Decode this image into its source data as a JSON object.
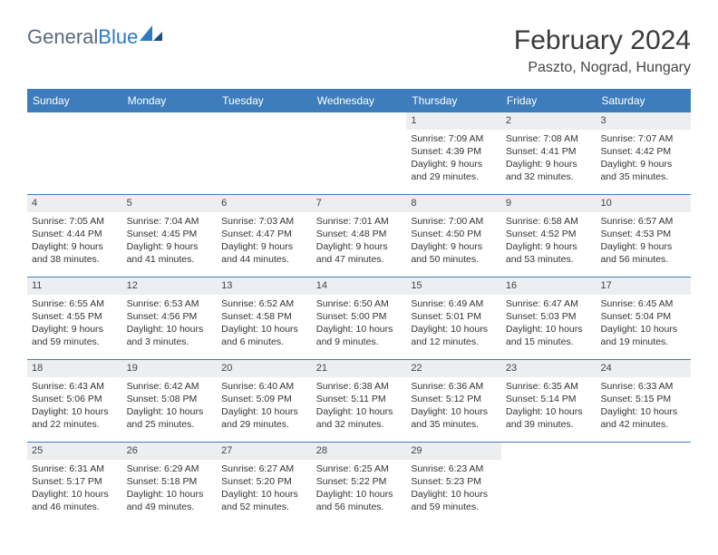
{
  "brand": {
    "part1": "General",
    "part2": "Blue"
  },
  "title": "February 2024",
  "location": "Paszto, Nograd, Hungary",
  "colors": {
    "header_bar": "#3d7dbb",
    "day_num_bg": "#eceef0",
    "brand_gray": "#5c6b7a",
    "brand_blue": "#2e7ac4"
  },
  "dow": [
    "Sunday",
    "Monday",
    "Tuesday",
    "Wednesday",
    "Thursday",
    "Friday",
    "Saturday"
  ],
  "weeks": [
    [
      {
        "n": "",
        "sr": "",
        "ss": "",
        "d1": "",
        "d2": "",
        "empty": true
      },
      {
        "n": "",
        "sr": "",
        "ss": "",
        "d1": "",
        "d2": "",
        "empty": true
      },
      {
        "n": "",
        "sr": "",
        "ss": "",
        "d1": "",
        "d2": "",
        "empty": true
      },
      {
        "n": "",
        "sr": "",
        "ss": "",
        "d1": "",
        "d2": "",
        "empty": true
      },
      {
        "n": "1",
        "sr": "Sunrise: 7:09 AM",
        "ss": "Sunset: 4:39 PM",
        "d1": "Daylight: 9 hours",
        "d2": "and 29 minutes."
      },
      {
        "n": "2",
        "sr": "Sunrise: 7:08 AM",
        "ss": "Sunset: 4:41 PM",
        "d1": "Daylight: 9 hours",
        "d2": "and 32 minutes."
      },
      {
        "n": "3",
        "sr": "Sunrise: 7:07 AM",
        "ss": "Sunset: 4:42 PM",
        "d1": "Daylight: 9 hours",
        "d2": "and 35 minutes."
      }
    ],
    [
      {
        "n": "4",
        "sr": "Sunrise: 7:05 AM",
        "ss": "Sunset: 4:44 PM",
        "d1": "Daylight: 9 hours",
        "d2": "and 38 minutes."
      },
      {
        "n": "5",
        "sr": "Sunrise: 7:04 AM",
        "ss": "Sunset: 4:45 PM",
        "d1": "Daylight: 9 hours",
        "d2": "and 41 minutes."
      },
      {
        "n": "6",
        "sr": "Sunrise: 7:03 AM",
        "ss": "Sunset: 4:47 PM",
        "d1": "Daylight: 9 hours",
        "d2": "and 44 minutes."
      },
      {
        "n": "7",
        "sr": "Sunrise: 7:01 AM",
        "ss": "Sunset: 4:48 PM",
        "d1": "Daylight: 9 hours",
        "d2": "and 47 minutes."
      },
      {
        "n": "8",
        "sr": "Sunrise: 7:00 AM",
        "ss": "Sunset: 4:50 PM",
        "d1": "Daylight: 9 hours",
        "d2": "and 50 minutes."
      },
      {
        "n": "9",
        "sr": "Sunrise: 6:58 AM",
        "ss": "Sunset: 4:52 PM",
        "d1": "Daylight: 9 hours",
        "d2": "and 53 minutes."
      },
      {
        "n": "10",
        "sr": "Sunrise: 6:57 AM",
        "ss": "Sunset: 4:53 PM",
        "d1": "Daylight: 9 hours",
        "d2": "and 56 minutes."
      }
    ],
    [
      {
        "n": "11",
        "sr": "Sunrise: 6:55 AM",
        "ss": "Sunset: 4:55 PM",
        "d1": "Daylight: 9 hours",
        "d2": "and 59 minutes."
      },
      {
        "n": "12",
        "sr": "Sunrise: 6:53 AM",
        "ss": "Sunset: 4:56 PM",
        "d1": "Daylight: 10 hours",
        "d2": "and 3 minutes."
      },
      {
        "n": "13",
        "sr": "Sunrise: 6:52 AM",
        "ss": "Sunset: 4:58 PM",
        "d1": "Daylight: 10 hours",
        "d2": "and 6 minutes."
      },
      {
        "n": "14",
        "sr": "Sunrise: 6:50 AM",
        "ss": "Sunset: 5:00 PM",
        "d1": "Daylight: 10 hours",
        "d2": "and 9 minutes."
      },
      {
        "n": "15",
        "sr": "Sunrise: 6:49 AM",
        "ss": "Sunset: 5:01 PM",
        "d1": "Daylight: 10 hours",
        "d2": "and 12 minutes."
      },
      {
        "n": "16",
        "sr": "Sunrise: 6:47 AM",
        "ss": "Sunset: 5:03 PM",
        "d1": "Daylight: 10 hours",
        "d2": "and 15 minutes."
      },
      {
        "n": "17",
        "sr": "Sunrise: 6:45 AM",
        "ss": "Sunset: 5:04 PM",
        "d1": "Daylight: 10 hours",
        "d2": "and 19 minutes."
      }
    ],
    [
      {
        "n": "18",
        "sr": "Sunrise: 6:43 AM",
        "ss": "Sunset: 5:06 PM",
        "d1": "Daylight: 10 hours",
        "d2": "and 22 minutes."
      },
      {
        "n": "19",
        "sr": "Sunrise: 6:42 AM",
        "ss": "Sunset: 5:08 PM",
        "d1": "Daylight: 10 hours",
        "d2": "and 25 minutes."
      },
      {
        "n": "20",
        "sr": "Sunrise: 6:40 AM",
        "ss": "Sunset: 5:09 PM",
        "d1": "Daylight: 10 hours",
        "d2": "and 29 minutes."
      },
      {
        "n": "21",
        "sr": "Sunrise: 6:38 AM",
        "ss": "Sunset: 5:11 PM",
        "d1": "Daylight: 10 hours",
        "d2": "and 32 minutes."
      },
      {
        "n": "22",
        "sr": "Sunrise: 6:36 AM",
        "ss": "Sunset: 5:12 PM",
        "d1": "Daylight: 10 hours",
        "d2": "and 35 minutes."
      },
      {
        "n": "23",
        "sr": "Sunrise: 6:35 AM",
        "ss": "Sunset: 5:14 PM",
        "d1": "Daylight: 10 hours",
        "d2": "and 39 minutes."
      },
      {
        "n": "24",
        "sr": "Sunrise: 6:33 AM",
        "ss": "Sunset: 5:15 PM",
        "d1": "Daylight: 10 hours",
        "d2": "and 42 minutes."
      }
    ],
    [
      {
        "n": "25",
        "sr": "Sunrise: 6:31 AM",
        "ss": "Sunset: 5:17 PM",
        "d1": "Daylight: 10 hours",
        "d2": "and 46 minutes."
      },
      {
        "n": "26",
        "sr": "Sunrise: 6:29 AM",
        "ss": "Sunset: 5:18 PM",
        "d1": "Daylight: 10 hours",
        "d2": "and 49 minutes."
      },
      {
        "n": "27",
        "sr": "Sunrise: 6:27 AM",
        "ss": "Sunset: 5:20 PM",
        "d1": "Daylight: 10 hours",
        "d2": "and 52 minutes."
      },
      {
        "n": "28",
        "sr": "Sunrise: 6:25 AM",
        "ss": "Sunset: 5:22 PM",
        "d1": "Daylight: 10 hours",
        "d2": "and 56 minutes."
      },
      {
        "n": "29",
        "sr": "Sunrise: 6:23 AM",
        "ss": "Sunset: 5:23 PM",
        "d1": "Daylight: 10 hours",
        "d2": "and 59 minutes."
      },
      {
        "n": "",
        "sr": "",
        "ss": "",
        "d1": "",
        "d2": "",
        "empty": true
      },
      {
        "n": "",
        "sr": "",
        "ss": "",
        "d1": "",
        "d2": "",
        "empty": true
      }
    ]
  ]
}
